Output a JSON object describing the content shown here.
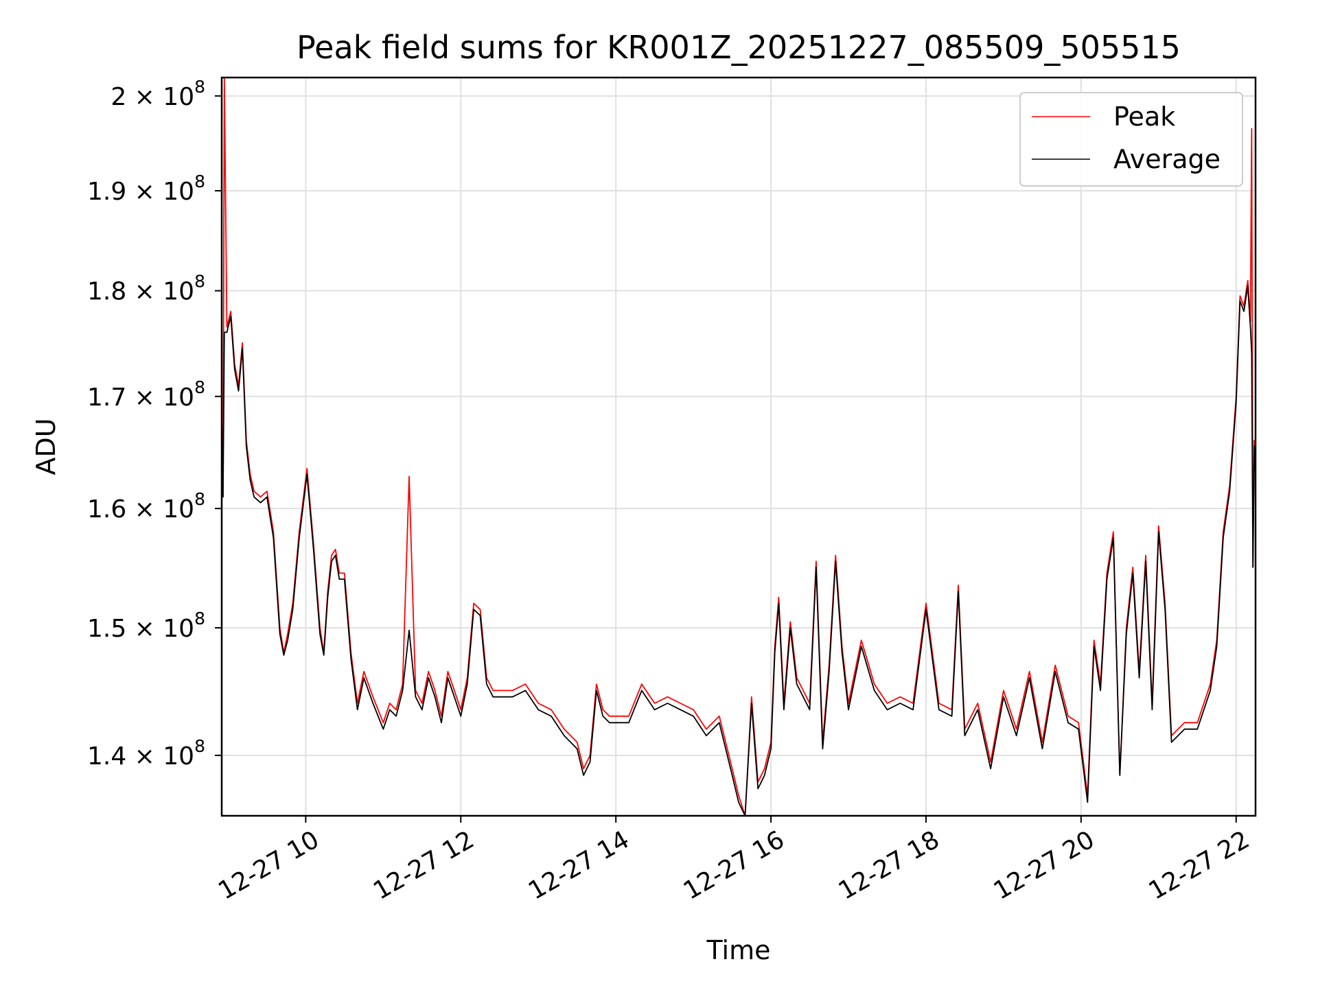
{
  "chart_data": {
    "type": "line",
    "title": "Peak field sums for KR001Z_20251227_085509_505515",
    "xlabel": "Time",
    "ylabel": "ADU",
    "xlim": [
      "2025-12-27 08:55",
      "2025-12-27 22:15"
    ],
    "ylim": [
      135500000,
      202000000
    ],
    "yscale": "log",
    "grid": true,
    "legend_position": "top-right",
    "x_ticks": [
      "12-27 10",
      "12-27 12",
      "12-27 14",
      "12-27 16",
      "12-27 18",
      "12-27 20",
      "12-27 22"
    ],
    "x_tick_times": [
      "2025-12-27 10:00",
      "2025-12-27 12:00",
      "2025-12-27 14:00",
      "2025-12-27 16:00",
      "2025-12-27 18:00",
      "2025-12-27 20:00",
      "2025-12-27 22:00"
    ],
    "y_ticks": [
      {
        "value": 140000000,
        "mantissa": "1.4"
      },
      {
        "value": 150000000,
        "mantissa": "1.5"
      },
      {
        "value": 160000000,
        "mantissa": "1.6"
      },
      {
        "value": 170000000,
        "mantissa": "1.7"
      },
      {
        "value": 180000000,
        "mantissa": "1.8"
      },
      {
        "value": 190000000,
        "mantissa": "1.9"
      },
      {
        "value": 200000000,
        "mantissa": "2"
      }
    ],
    "y_tick_suffix": "× 10",
    "y_tick_exponent": "8",
    "x": [
      "2025-12-27 08:55",
      "2025-12-27 08:56",
      "2025-12-27 08:57",
      "2025-12-27 08:59",
      "2025-12-27 09:02",
      "2025-12-27 09:05",
      "2025-12-27 09:08",
      "2025-12-27 09:11",
      "2025-12-27 09:14",
      "2025-12-27 09:17",
      "2025-12-27 09:20",
      "2025-12-27 09:25",
      "2025-12-27 09:30",
      "2025-12-27 09:35",
      "2025-12-27 09:40",
      "2025-12-27 09:43",
      "2025-12-27 09:46",
      "2025-12-27 09:50",
      "2025-12-27 09:55",
      "2025-12-27 10:01",
      "2025-12-27 10:06",
      "2025-12-27 10:11",
      "2025-12-27 10:14",
      "2025-12-27 10:17",
      "2025-12-27 10:20",
      "2025-12-27 10:23",
      "2025-12-27 10:26",
      "2025-12-27 10:30",
      "2025-12-27 10:35",
      "2025-12-27 10:40",
      "2025-12-27 10:45",
      "2025-12-27 10:52",
      "2025-12-27 11:00",
      "2025-12-27 11:05",
      "2025-12-27 11:10",
      "2025-12-27 11:15",
      "2025-12-27 11:20",
      "2025-12-27 11:25",
      "2025-12-27 11:30",
      "2025-12-27 11:35",
      "2025-12-27 11:40",
      "2025-12-27 11:45",
      "2025-12-27 11:50",
      "2025-12-27 11:55",
      "2025-12-27 12:00",
      "2025-12-27 12:05",
      "2025-12-27 12:10",
      "2025-12-27 12:15",
      "2025-12-27 12:20",
      "2025-12-27 12:25",
      "2025-12-27 12:30",
      "2025-12-27 12:40",
      "2025-12-27 12:50",
      "2025-12-27 13:00",
      "2025-12-27 13:10",
      "2025-12-27 13:20",
      "2025-12-27 13:30",
      "2025-12-27 13:35",
      "2025-12-27 13:40",
      "2025-12-27 13:45",
      "2025-12-27 13:50",
      "2025-12-27 13:55",
      "2025-12-27 14:00",
      "2025-12-27 14:10",
      "2025-12-27 14:20",
      "2025-12-27 14:30",
      "2025-12-27 14:40",
      "2025-12-27 14:50",
      "2025-12-27 15:00",
      "2025-12-27 15:10",
      "2025-12-27 15:20",
      "2025-12-27 15:30",
      "2025-12-27 15:35",
      "2025-12-27 15:40",
      "2025-12-27 15:45",
      "2025-12-27 15:50",
      "2025-12-27 15:55",
      "2025-12-27 16:00",
      "2025-12-27 16:03",
      "2025-12-27 16:06",
      "2025-12-27 16:10",
      "2025-12-27 16:15",
      "2025-12-27 16:20",
      "2025-12-27 16:25",
      "2025-12-27 16:30",
      "2025-12-27 16:35",
      "2025-12-27 16:40",
      "2025-12-27 16:45",
      "2025-12-27 16:50",
      "2025-12-27 16:55",
      "2025-12-27 17:00",
      "2025-12-27 17:10",
      "2025-12-27 17:20",
      "2025-12-27 17:30",
      "2025-12-27 17:40",
      "2025-12-27 17:50",
      "2025-12-27 18:00",
      "2025-12-27 18:10",
      "2025-12-27 18:20",
      "2025-12-27 18:25",
      "2025-12-27 18:30",
      "2025-12-27 18:40",
      "2025-12-27 18:50",
      "2025-12-27 19:00",
      "2025-12-27 19:10",
      "2025-12-27 19:20",
      "2025-12-27 19:30",
      "2025-12-27 19:40",
      "2025-12-27 19:50",
      "2025-12-27 19:58",
      "2025-12-27 20:05",
      "2025-12-27 20:10",
      "2025-12-27 20:15",
      "2025-12-27 20:20",
      "2025-12-27 20:25",
      "2025-12-27 20:30",
      "2025-12-27 20:35",
      "2025-12-27 20:40",
      "2025-12-27 20:45",
      "2025-12-27 20:50",
      "2025-12-27 20:55",
      "2025-12-27 21:00",
      "2025-12-27 21:05",
      "2025-12-27 21:10",
      "2025-12-27 21:20",
      "2025-12-27 21:30",
      "2025-12-27 21:40",
      "2025-12-27 21:45",
      "2025-12-27 21:50",
      "2025-12-27 21:55",
      "2025-12-27 22:00",
      "2025-12-27 22:03",
      "2025-12-27 22:06",
      "2025-12-27 22:09",
      "2025-12-27 22:11",
      "2025-12-27 22:12",
      "2025-12-27 22:13",
      "2025-12-27 22:14",
      "2025-12-27 22:15"
    ],
    "series": [
      {
        "name": "Peak",
        "color": "#ff0000",
        "values": [
          168000000,
          161000000,
          202000000,
          176500000,
          178000000,
          173000000,
          171000000,
          175000000,
          166000000,
          163000000,
          161500000,
          161000000,
          161500000,
          158000000,
          150000000,
          148000000,
          149500000,
          152000000,
          158000000,
          163500000,
          157000000,
          150000000,
          148000000,
          153000000,
          156000000,
          156500000,
          154500000,
          154500000,
          148000000,
          144000000,
          146500000,
          144500000,
          142500000,
          144000000,
          143500000,
          145500000,
          162800000,
          145000000,
          144000000,
          146500000,
          145000000,
          143000000,
          146500000,
          145000000,
          143500000,
          146000000,
          152000000,
          151500000,
          146000000,
          145000000,
          145000000,
          145000000,
          145500000,
          144000000,
          143500000,
          142000000,
          141000000,
          139000000,
          140000000,
          145500000,
          143500000,
          143000000,
          143000000,
          143000000,
          145500000,
          144000000,
          144500000,
          144000000,
          143500000,
          142000000,
          143000000,
          139000000,
          137000000,
          135500000,
          144500000,
          138000000,
          139000000,
          141000000,
          148500000,
          152500000,
          144000000,
          150500000,
          146000000,
          145000000,
          144000000,
          155500000,
          141000000,
          147000000,
          156000000,
          148500000,
          144000000,
          149000000,
          145500000,
          144000000,
          144500000,
          144000000,
          152000000,
          144000000,
          143500000,
          153500000,
          142000000,
          144000000,
          139500000,
          145000000,
          142000000,
          146500000,
          141000000,
          147000000,
          143000000,
          142500000,
          137000000,
          149000000,
          145500000,
          154500000,
          158000000,
          138500000,
          150000000,
          155000000,
          146500000,
          156000000,
          144000000,
          158500000,
          152000000,
          141500000,
          142500000,
          142500000,
          145500000,
          149000000,
          158000000,
          162000000,
          170000000,
          179500000,
          178500000,
          181000000,
          177000000,
          196500000,
          155000000,
          166000000,
          163500000
        ]
      },
      {
        "name": "Average",
        "color": "#000000",
        "values": [
          168000000,
          161000000,
          176000000,
          176000000,
          177500000,
          172500000,
          170500000,
          174500000,
          165500000,
          162500000,
          161000000,
          160500000,
          161000000,
          157500000,
          149500000,
          147800000,
          149000000,
          151500000,
          157500000,
          163000000,
          156500000,
          149500000,
          147800000,
          152500000,
          155500000,
          156000000,
          154000000,
          154000000,
          147500000,
          143500000,
          146000000,
          144000000,
          142000000,
          143500000,
          143000000,
          145000000,
          149800000,
          144500000,
          143500000,
          146000000,
          144500000,
          142500000,
          146000000,
          144500000,
          143000000,
          145500000,
          151500000,
          151000000,
          145500000,
          144500000,
          144500000,
          144500000,
          145000000,
          143500000,
          143000000,
          141500000,
          140500000,
          138500000,
          139500000,
          145000000,
          143000000,
          142500000,
          142500000,
          142500000,
          145000000,
          143500000,
          144000000,
          143500000,
          143000000,
          141500000,
          142500000,
          138500000,
          136500000,
          135500000,
          144000000,
          137500000,
          138500000,
          140500000,
          148000000,
          152000000,
          143500000,
          150000000,
          145500000,
          144500000,
          143500000,
          155000000,
          140500000,
          146500000,
          155500000,
          148000000,
          143500000,
          148500000,
          145000000,
          143500000,
          144000000,
          143500000,
          151500000,
          143500000,
          143000000,
          153000000,
          141500000,
          143500000,
          139000000,
          144500000,
          141500000,
          146000000,
          140500000,
          146500000,
          142500000,
          142000000,
          136500000,
          148500000,
          145000000,
          154000000,
          157500000,
          138500000,
          149500000,
          154500000,
          146000000,
          155500000,
          143500000,
          158000000,
          151500000,
          141000000,
          142000000,
          142000000,
          145000000,
          148500000,
          157500000,
          161500000,
          169500000,
          179000000,
          178000000,
          180500000,
          176500000,
          174000000,
          155000000,
          165500000,
          163000000
        ]
      }
    ]
  }
}
